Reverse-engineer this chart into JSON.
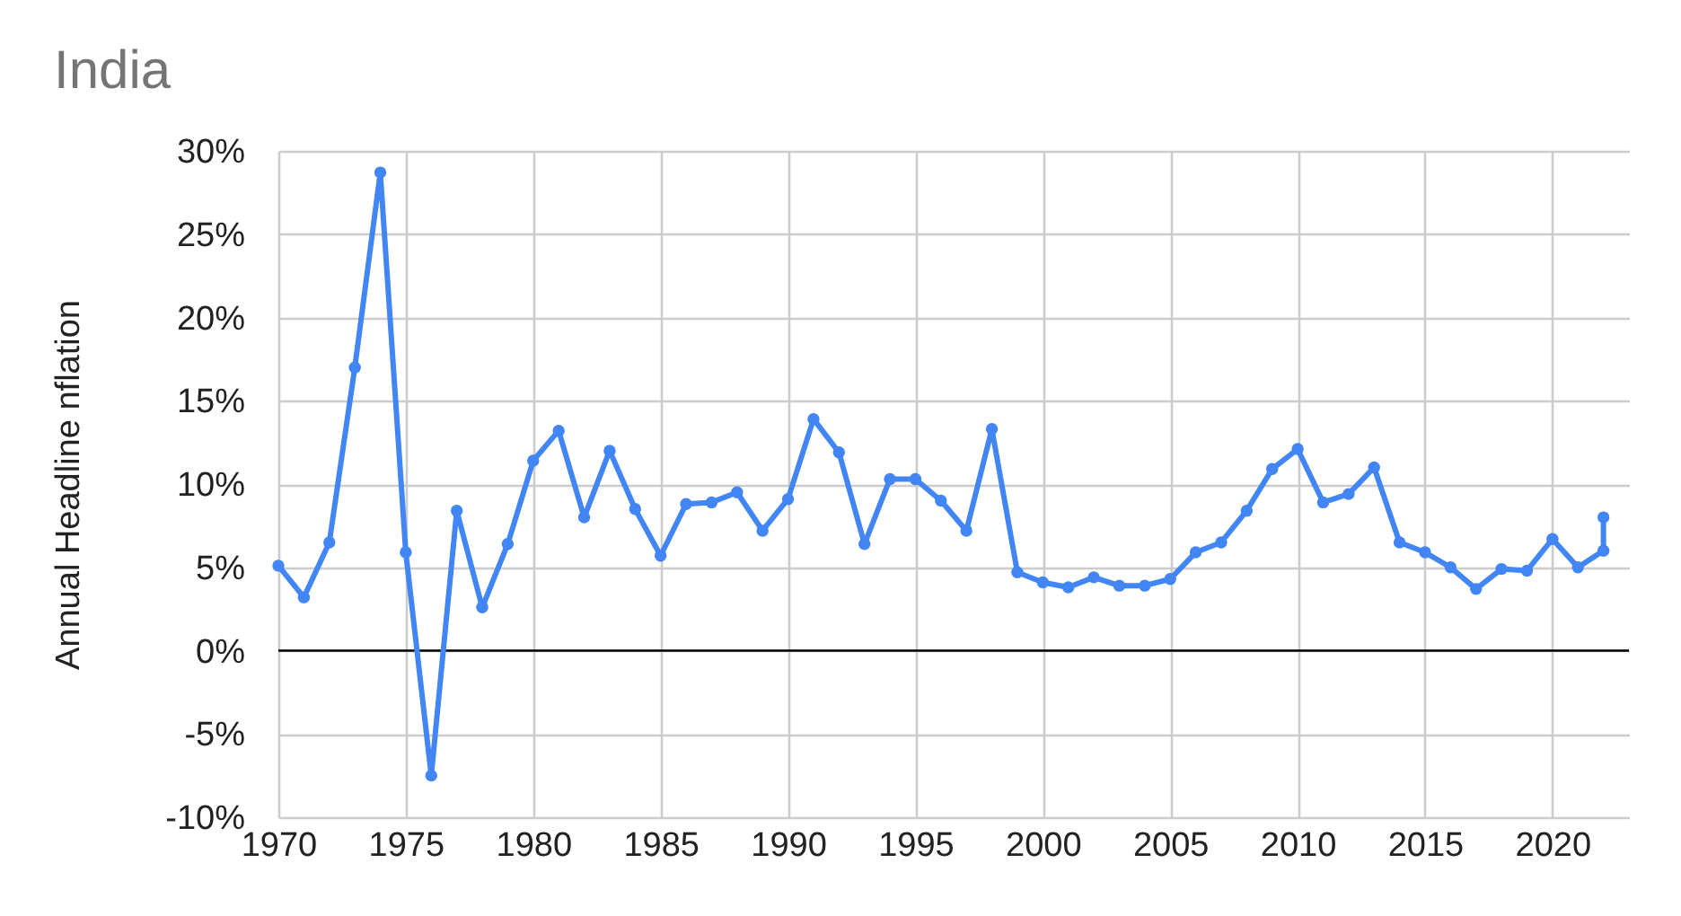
{
  "chart_data": {
    "type": "line",
    "title": "India",
    "ylabel": "Annual Headline nflation",
    "x": [
      1970,
      1971,
      1972,
      1973,
      1974,
      1975,
      1976,
      1977,
      1978,
      1979,
      1980,
      1981,
      1982,
      1983,
      1984,
      1985,
      1986,
      1987,
      1988,
      1989,
      1990,
      1991,
      1992,
      1993,
      1994,
      1995,
      1996,
      1997,
      1998,
      1999,
      2000,
      2001,
      2002,
      2003,
      2004,
      2005,
      2006,
      2007,
      2008,
      2009,
      2010,
      2011,
      2012,
      2013,
      2014,
      2015,
      2016,
      2017,
      2018,
      2019,
      2020,
      2021,
      2022,
      2022
    ],
    "series": [
      {
        "color": "#4285f4",
        "values": [
          5.1,
          3.2,
          6.5,
          17.0,
          28.7,
          5.9,
          -7.5,
          8.4,
          2.6,
          6.4,
          11.4,
          13.2,
          8.0,
          12.0,
          8.5,
          5.7,
          8.8,
          8.9,
          9.5,
          7.2,
          9.1,
          13.9,
          11.9,
          6.4,
          10.3,
          10.3,
          9.0,
          7.2,
          13.3,
          4.7,
          4.1,
          3.8,
          4.4,
          3.9,
          3.9,
          4.3,
          5.9,
          6.5,
          8.4,
          10.9,
          12.1,
          8.9,
          9.4,
          11.0,
          6.5,
          5.9,
          5.0,
          3.7,
          4.9,
          4.8,
          6.7,
          5.0,
          6.0,
          8.0
        ]
      }
    ],
    "xlim": [
      1970,
      2023
    ],
    "xticks": [
      1970,
      1975,
      1980,
      1985,
      1990,
      1995,
      2000,
      2005,
      2010,
      2015,
      2020
    ],
    "ylim": [
      -10,
      30
    ],
    "yticks": [
      {
        "value": -10,
        "label": "-10%"
      },
      {
        "value": -5,
        "label": "-5%"
      },
      {
        "value": 0,
        "label": "0%"
      },
      {
        "value": 5,
        "label": "5%"
      },
      {
        "value": 10,
        "label": "10%"
      },
      {
        "value": 15,
        "label": "15%"
      },
      {
        "value": 20,
        "label": "20%"
      },
      {
        "value": 25,
        "label": "25%"
      },
      {
        "value": 30,
        "label": "30%"
      }
    ],
    "ref_lines": [
      {
        "axis": "y",
        "value": 0,
        "color": "#000000"
      }
    ],
    "grid": true,
    "marker": "circle",
    "line_style": "solid"
  }
}
